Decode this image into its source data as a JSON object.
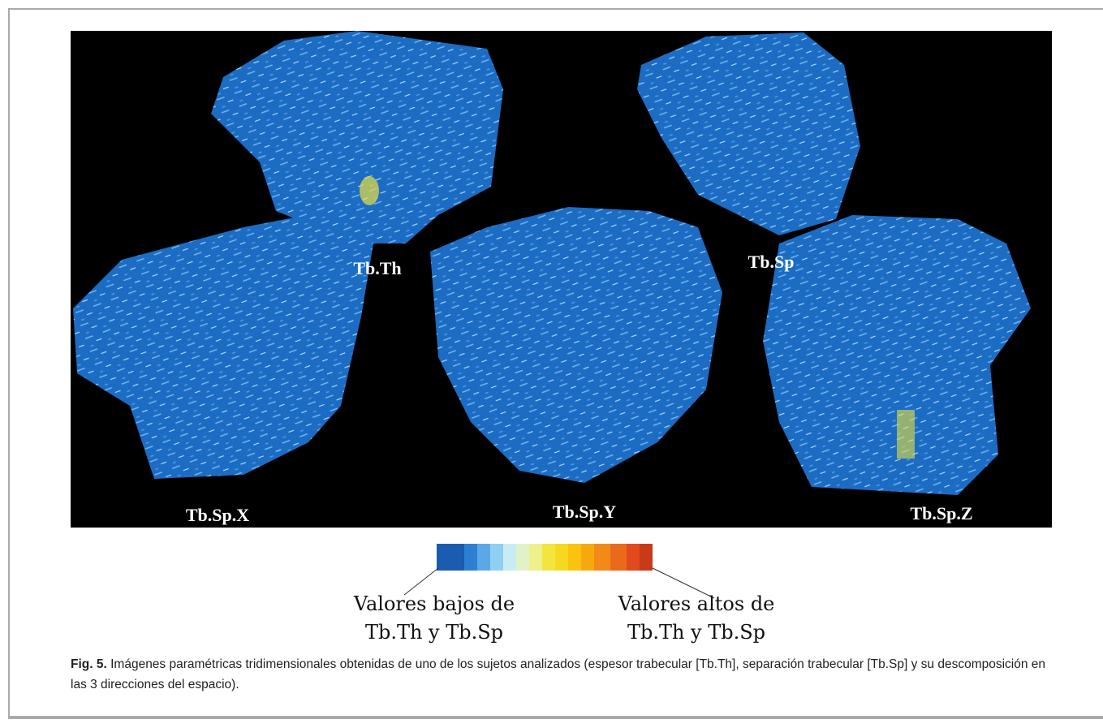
{
  "figure": {
    "panels": [
      {
        "label": "Tb.Th"
      },
      {
        "label": "Tb.Sp"
      },
      {
        "label": "Tb.Sp.X"
      },
      {
        "label": "Tb.Sp.Y"
      },
      {
        "label": "Tb.Sp.Z"
      }
    ],
    "colorbar": {
      "low_label": [
        "Valores bajos de",
        "Tb.Th y Tb.Sp"
      ],
      "high_label": [
        "Valores altos de",
        "Tb.Th y Tb.Sp"
      ]
    },
    "caption": {
      "number": "Fig. 5.",
      "text": "Imágenes paramétricas tridimensionales obtenidas de uno de los sujetos analizados (espesor trabecular [Tb.Th], separación trabecular [Tb.Sp] y su descomposición en las 3 direcciones del espacio)."
    }
  }
}
